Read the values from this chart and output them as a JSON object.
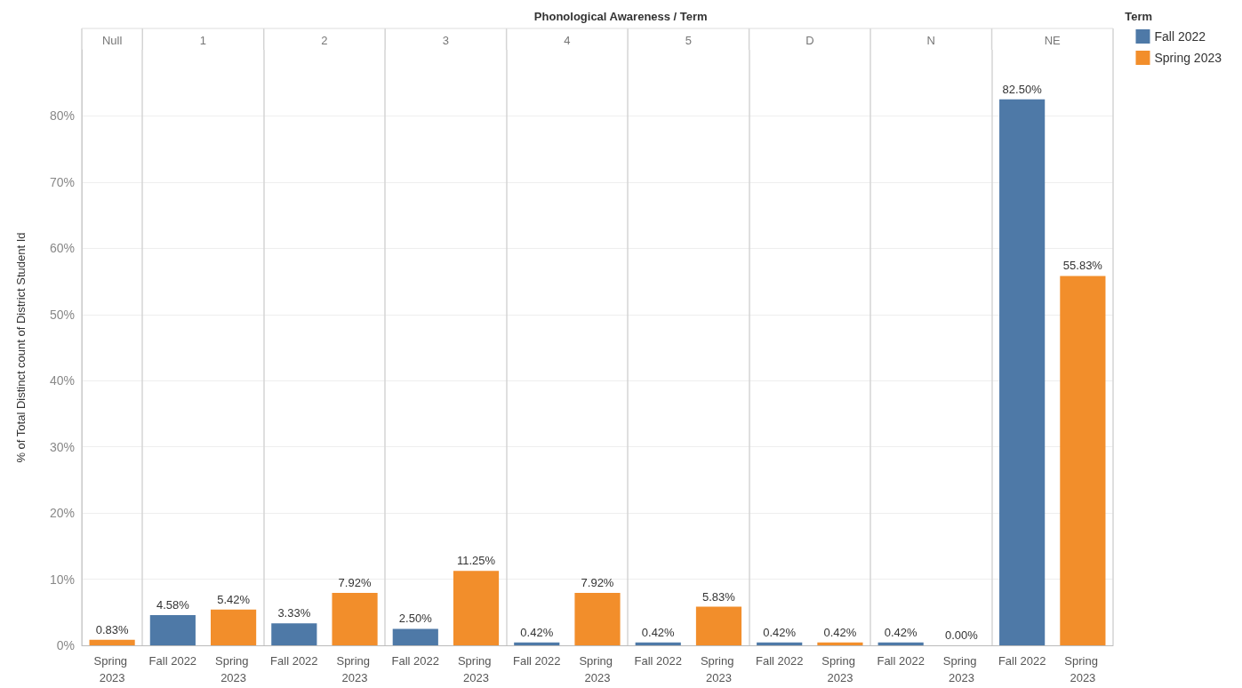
{
  "chart_data": {
    "type": "bar",
    "title": "Phonological Awareness / Term",
    "ylabel": "% of Total Distinct count of District Student Id",
    "legend_title": "Term",
    "annotations": [
      "Null",
      "1",
      "2",
      "3",
      "4",
      "5",
      "D",
      "N",
      "NE"
    ],
    "categories": [
      "Spring 2023",
      "Fall 2022",
      "Spring 2023",
      "Fall 2022",
      "Spring 2023",
      "Fall 2022",
      "Spring 2023",
      "Fall 2022",
      "Spring 2023",
      "Fall 2022",
      "Spring 2023",
      "Fall 2022",
      "Spring 2023",
      "Fall 2022",
      "Spring 2023",
      "Fall 2022",
      "Spring 2023"
    ],
    "stacked": true,
    "series": [
      {
        "name": "Fall 2022",
        "color": "#4e79a7",
        "values": [
          null,
          4.58,
          null,
          3.33,
          null,
          2.5,
          null,
          0.42,
          null,
          0.42,
          null,
          0.42,
          null,
          0.42,
          null,
          82.5,
          null
        ],
        "value_labels": [
          null,
          "4.58%",
          null,
          "3.33%",
          null,
          "2.50%",
          null,
          "0.42%",
          null,
          "0.42%",
          null,
          "0.42%",
          null,
          "0.42%",
          null,
          "82.50%",
          null
        ]
      },
      {
        "name": "Spring 2023",
        "color": "#f28e2b",
        "values": [
          0.83,
          null,
          5.42,
          null,
          7.92,
          null,
          11.25,
          null,
          7.92,
          null,
          5.83,
          null,
          0.42,
          null,
          0,
          null,
          55.83
        ],
        "value_labels": [
          "0.83%",
          null,
          "5.42%",
          null,
          "7.92%",
          null,
          "11.25%",
          null,
          "7.92%",
          null,
          "5.83%",
          null,
          "0.42%",
          null,
          "0.00%",
          null,
          "55.83%"
        ]
      }
    ],
    "ylim": [
      0,
      90
    ],
    "yticks": [
      {
        "value": 0,
        "label": "0%"
      },
      {
        "value": 10,
        "label": "10%"
      },
      {
        "value": 20,
        "label": "20%"
      },
      {
        "value": 30,
        "label": "30%"
      },
      {
        "value": 40,
        "label": "40%"
      },
      {
        "value": 50,
        "label": "50%"
      },
      {
        "value": 60,
        "label": "60%"
      },
      {
        "value": 70,
        "label": "70%"
      },
      {
        "value": 80,
        "label": "80%"
      }
    ],
    "grid": "y",
    "legend": "top right"
  }
}
